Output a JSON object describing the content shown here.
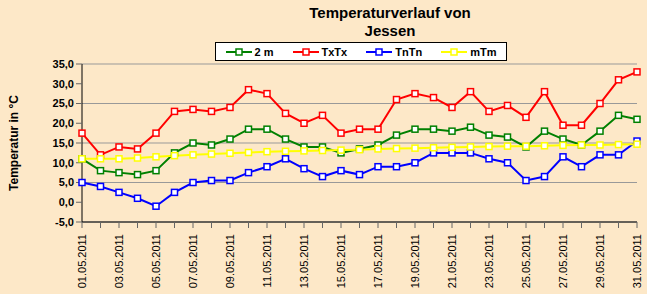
{
  "chart_data": {
    "type": "line",
    "title": "Temperaturverlauf von Jessen",
    "y_label": "Temperatur in °C",
    "categories": [
      "01.05.2011",
      null,
      "03.05.2011",
      null,
      "05.05.2011",
      null,
      "07.05.2011",
      null,
      "09.05.2011",
      null,
      "11.05.2011",
      null,
      "13.05.2011",
      null,
      "15.05.2011",
      null,
      "17.05.2011",
      null,
      "19.05.2011",
      null,
      "21.05.2011",
      null,
      "23.05.2011",
      null,
      "25.05.2011",
      null,
      "27.05.2011",
      null,
      "29.05.2011",
      null,
      "31.05.2011"
    ],
    "series": [
      {
        "name": "2 m",
        "color": "#008000",
        "marker": "square",
        "line_style": "solid",
        "values": [
          11,
          8,
          7.5,
          7,
          8,
          12.5,
          15,
          14.5,
          16,
          18.5,
          18.5,
          16,
          14,
          14,
          12.5,
          13.5,
          14.5,
          17,
          18.5,
          18.5,
          18,
          19,
          17,
          16.5,
          14,
          18,
          16,
          14.5,
          18,
          22,
          21
        ]
      },
      {
        "name": "TxTx",
        "color": "#FF0000",
        "marker": "square",
        "line_style": "solid",
        "values": [
          17.5,
          12,
          14,
          13.5,
          17.5,
          23,
          23.5,
          23,
          24,
          28.5,
          27.5,
          22.5,
          20,
          22,
          17.5,
          18.5,
          18.5,
          26,
          27.5,
          26.5,
          24,
          28,
          23,
          24.5,
          21.5,
          28,
          19.5,
          19.5,
          25,
          31,
          33
        ]
      },
      {
        "name": "TnTn",
        "color": "#0000FF",
        "marker": "square",
        "line_style": "solid",
        "values": [
          5,
          4,
          2.5,
          1,
          -1,
          2.5,
          5,
          5.5,
          5.5,
          7.5,
          9,
          11,
          8.5,
          6.5,
          8,
          7,
          9,
          9,
          10,
          12.5,
          12.5,
          12.5,
          11,
          10,
          5.5,
          6.5,
          11.5,
          9,
          12,
          12,
          15.5
        ]
      },
      {
        "name": "mTm",
        "color": "#FFFF00",
        "marker": "square",
        "line_style": "solid",
        "values": [
          11,
          11,
          11,
          11.2,
          11.5,
          11.8,
          12,
          12.2,
          12.4,
          12.6,
          12.8,
          12.9,
          13,
          13.1,
          13.2,
          13.3,
          13.5,
          13.6,
          13.7,
          13.8,
          13.9,
          14,
          14.1,
          14.2,
          14.2,
          14.3,
          14.4,
          14.5,
          14.5,
          14.6,
          14.7
        ]
      }
    ],
    "ylim": [
      -5,
      35
    ],
    "yticks": [
      {
        "value": -5,
        "label": "-5,0"
      },
      {
        "value": 0,
        "label": "0,0"
      },
      {
        "value": 5,
        "label": "5,0"
      },
      {
        "value": 10,
        "label": "10,0"
      },
      {
        "value": 15,
        "label": "15,0"
      },
      {
        "value": 20,
        "label": "20,0"
      },
      {
        "value": 25,
        "label": "25,0"
      },
      {
        "value": 30,
        "label": "30,0"
      },
      {
        "value": 35,
        "label": "35,0"
      }
    ],
    "grid": true,
    "legend": "top"
  }
}
